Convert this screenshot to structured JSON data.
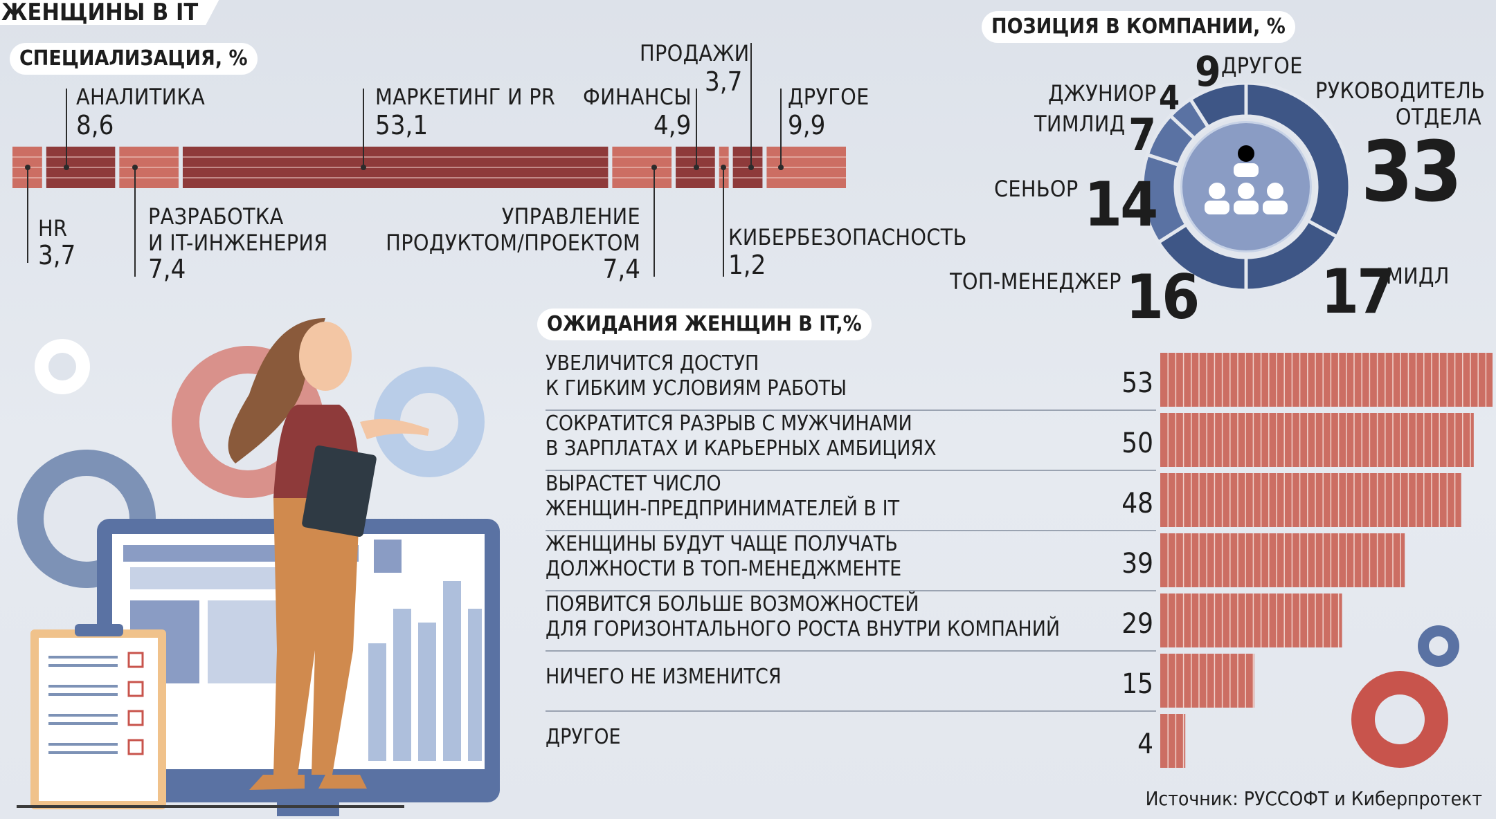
{
  "header": {
    "title": "ЖЕНЩИНЫ В IT"
  },
  "specialization": {
    "title": "СПЕЦИАЛИЗАЦИЯ, %",
    "labels": {
      "hr": "HR",
      "analytics": "АНАЛИТИКА",
      "dev": "РАЗРАБОТКА\nИ IT-ИНЖЕНЕРИЯ",
      "marketing": "МАРКЕТИНГ И PR",
      "product": "УПРАВЛЕНИЕ\nПРОДУКТОМ/ПРОЕКТОМ",
      "finance": "ФИНАНСЫ",
      "cyber": "КИБЕРБЕЗОПАСНОСТЬ",
      "sales": "ПРОДАЖИ",
      "other": "ДРУГОЕ"
    },
    "values": {
      "hr": "3,7",
      "analytics": "8,6",
      "dev": "7,4",
      "marketing": "53,1",
      "product": "7,4",
      "finance": "4,9",
      "cyber": "1,2",
      "sales": "3,7",
      "other": "9,9"
    }
  },
  "position": {
    "title": "ПОЗИЦИЯ В КОМПАНИИ, %",
    "labels": {
      "head": "РУКОВОДИТЕЛЬ\nОТДЕЛА",
      "middle": "МИДЛ",
      "top": "ТОП-МЕНЕДЖЕР",
      "senior": "СЕНЬОР",
      "teamlead": "ТИМЛИД",
      "junior": "ДЖУНИОР",
      "other": "ДРУГОЕ"
    },
    "values": {
      "head": "33",
      "middle": "17",
      "top": "16",
      "senior": "14",
      "teamlead": "7",
      "junior": "4",
      "other": "9"
    }
  },
  "expectations": {
    "title": "ОЖИДАНИЯ ЖЕНЩИН В IT,%",
    "rows": [
      {
        "label": "УВЕЛИЧИТСЯ ДОСТУП\nК ГИБКИМ УСЛОВИЯМ РАБОТЫ",
        "value": "53"
      },
      {
        "label": "СОКРАТИТСЯ РАЗРЫВ С МУЖЧИНАМИ\nВ ЗАРПЛАТАХ И КАРЬЕРНЫХ АМБИЦИЯХ",
        "value": "50"
      },
      {
        "label": "ВЫРАСТЕТ ЧИСЛО\nЖЕНЩИН-ПРЕДПРИНИМАТЕЛЕЙ В IT",
        "value": "48"
      },
      {
        "label": "ЖЕНЩИНЫ БУДУТ ЧАЩЕ ПОЛУЧАТЬ\nДОЛЖНОСТИ В ТОП-МЕНЕДЖМЕНТЕ",
        "value": "39"
      },
      {
        "label": "ПОЯВИТСЯ БОЛЬШЕ ВОЗМОЖНОСТЕЙ\nДЛЯ ГОРИЗОНТАЛЬНОГО РОСТА ВНУТРИ КОМПАНИЙ",
        "value": "29"
      },
      {
        "label": "НИЧЕГО НЕ ИЗМЕНИТСЯ",
        "value": "15"
      },
      {
        "label": "ДРУГОЕ",
        "value": "4"
      }
    ]
  },
  "source": "Источник: РУССОФТ и Киберпротект",
  "colors": {
    "bar_dark": "#8e3a3a",
    "bar_light": "#cc6e63",
    "donut_dark": "#3e5686",
    "donut_mid": "#5a72a3",
    "donut_inner": "#8a9cc4",
    "gear_pink": "#d9918b",
    "gear_blue": "#7d92b6",
    "gear_light": "#b9cde8"
  },
  "chart_data": [
    {
      "type": "bar",
      "title": "СПЕЦИАЛИЗАЦИЯ, %",
      "orientation": "stacked-horizontal",
      "categories": [
        "HR",
        "АНАЛИТИКА",
        "РАЗРАБОТКА И IT-ИНЖЕНЕРИЯ",
        "МАРКЕТИНГ И PR",
        "УПРАВЛЕНИЕ ПРОДУКТОМ/ПРОЕКТОМ",
        "ФИНАНСЫ",
        "КИБЕРБЕЗОПАСНОСТЬ",
        "ПРОДАЖИ",
        "ДРУГОЕ"
      ],
      "values": [
        3.7,
        8.6,
        7.4,
        53.1,
        7.4,
        4.9,
        1.2,
        3.7,
        9.9
      ],
      "shade": [
        "light",
        "dark",
        "light",
        "dark",
        "light",
        "dark",
        "light",
        "dark",
        "light"
      ]
    },
    {
      "type": "pie",
      "title": "ПОЗИЦИЯ В КОМПАНИИ, %",
      "categories": [
        "РУКОВОДИТЕЛЬ ОТДЕЛА",
        "МИДЛ",
        "ТОП-МЕНЕДЖЕР",
        "СЕНЬОР",
        "ТИМЛИД",
        "ДЖУНИОР",
        "ДРУГОЕ"
      ],
      "values": [
        33,
        17,
        16,
        14,
        7,
        4,
        9
      ]
    },
    {
      "type": "bar",
      "title": "ОЖИДАНИЯ ЖЕНЩИН В IT,%",
      "orientation": "horizontal",
      "categories": [
        "УВЕЛИЧИТСЯ ДОСТУП К ГИБКИМ УСЛОВИЯМ РАБОТЫ",
        "СОКРАТИТСЯ РАЗРЫВ С МУЖЧИНАМИ В ЗАРПЛАТАХ И КАРЬЕРНЫХ АМБИЦИЯХ",
        "ВЫРАСТЕТ ЧИСЛО ЖЕНЩИН-ПРЕДПРИНИМАТЕЛЕЙ В IT",
        "ЖЕНЩИНЫ БУДУТ ЧАЩЕ ПОЛУЧАТЬ ДОЛЖНОСТИ В ТОП-МЕНЕДЖМЕНТЕ",
        "ПОЯВИТСЯ БОЛЬШЕ ВОЗМОЖНОСТЕЙ ДЛЯ ГОРИЗОНТАЛЬНОГО РОСТА ВНУТРИ КОМПАНИЙ",
        "НИЧЕГО НЕ ИЗМЕНИТСЯ",
        "ДРУГОЕ"
      ],
      "values": [
        53,
        50,
        48,
        39,
        29,
        15,
        4
      ]
    }
  ]
}
